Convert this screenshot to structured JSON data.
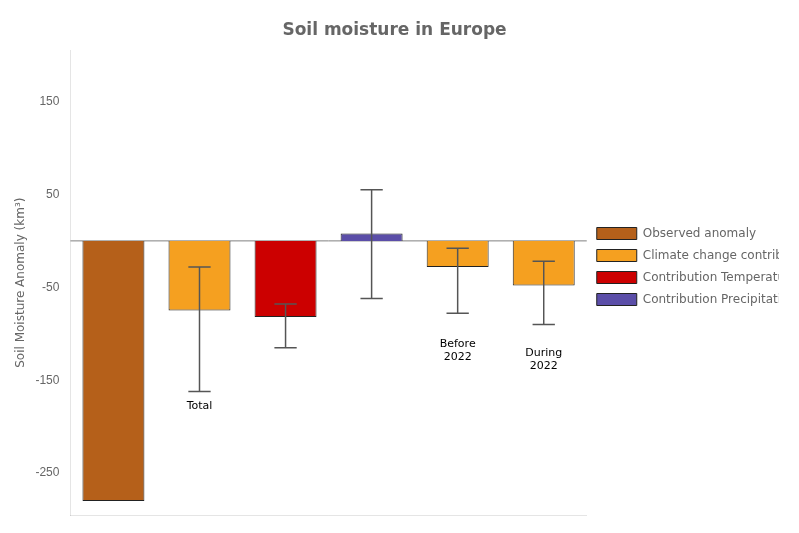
{
  "chart_data": {
    "type": "bar",
    "title": "Soil moisture in Europe",
    "y_label": "Soil Moisture Anomaly (km³)",
    "categories": [
      null,
      null,
      null,
      null,
      null,
      null
    ],
    "series": [
      {
        "name": "Observed anomaly",
        "color": "#b5601a",
        "values": [
          -280,
          null,
          null,
          null,
          null,
          null
        ],
        "error_low": [
          null,
          null,
          null,
          null,
          null,
          null
        ],
        "error_high": [
          null,
          null,
          null,
          null,
          null,
          null
        ]
      },
      {
        "name": "Climate change contribution",
        "color": "#f5a020",
        "values": [
          null,
          -75,
          null,
          null,
          -28,
          -48
        ],
        "error_low": [
          null,
          -162,
          null,
          null,
          -78,
          -90
        ],
        "error_high": [
          null,
          -28,
          null,
          null,
          -8,
          -22
        ]
      },
      {
        "name": "Contribution Temperature trends",
        "color": "#cc0000",
        "values": [
          null,
          null,
          -82,
          null,
          null,
          null
        ],
        "error_low": [
          null,
          null,
          -115,
          null,
          null,
          null
        ],
        "error_high": [
          null,
          null,
          -68,
          null,
          null,
          null
        ]
      },
      {
        "name": "Contribution Precipitation trends",
        "color": "#5b4ea8",
        "values": [
          null,
          null,
          null,
          8,
          null,
          null
        ],
        "error_low": [
          null,
          null,
          null,
          -62,
          null,
          null
        ],
        "error_high": [
          null,
          null,
          null,
          55,
          null,
          null
        ]
      }
    ],
    "annotations": [
      {
        "index": 1,
        "y": -172,
        "text": "Total"
      },
      {
        "index": 4,
        "y": -105,
        "text": "Before\n2022"
      },
      {
        "index": 5,
        "y": -115,
        "text": "During\n2022"
      }
    ],
    "hlines": [
      0
    ],
    "ylim": [
      -295,
      205
    ],
    "yticks": [
      -250,
      -150,
      -50,
      50,
      150
    ],
    "grid": false,
    "legend": "right",
    "tick_labels": "y"
  }
}
